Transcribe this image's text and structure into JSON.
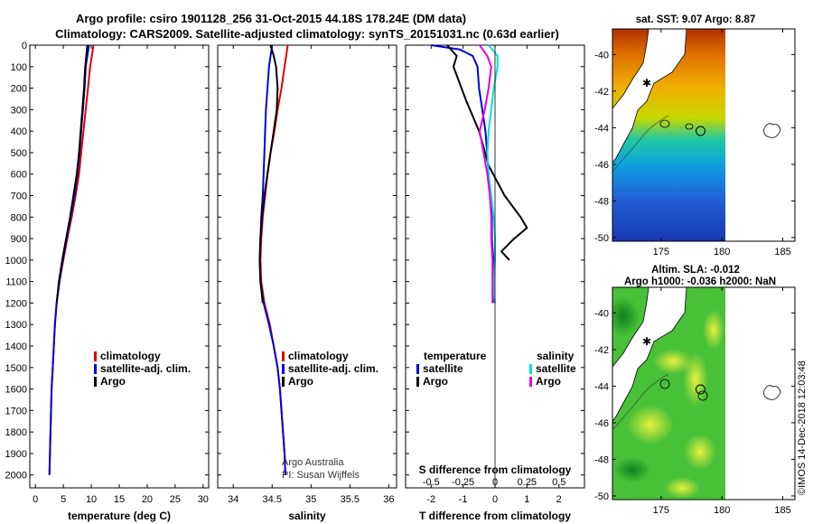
{
  "title": {
    "line1": "Argo profile: csiro 1901128_256 31-Oct-2015 44.18S 178.24E (DM data)",
    "line2": "Climatology: CARS2009. Satellite-adjusted climatology: synTS_20151031.nc (0.63d earlier)"
  },
  "colors": {
    "climatology": "#e00000",
    "satellite": "#0000e0",
    "argo": "#000000",
    "salinity_satellite": "#00e0e0",
    "salinity_argo": "#e000e0",
    "land": "#ffffff"
  },
  "credit": {
    "line1": "Argo Australia",
    "line2": "PI: Susan Wijffels"
  },
  "stamp": "©IMOS 14-Dec-2018 12:03:48",
  "chart_data": [
    {
      "id": "temperature",
      "type": "line",
      "xlabel": "temperature (deg C)",
      "xlim": [
        -1,
        31
      ],
      "xticks": [
        0,
        5,
        10,
        15,
        20,
        25,
        30
      ],
      "ylim": [
        0,
        2060
      ],
      "yticks": [
        0,
        100,
        200,
        300,
        400,
        500,
        600,
        700,
        800,
        900,
        1000,
        1100,
        1200,
        1300,
        1400,
        1500,
        1600,
        1700,
        1800,
        1900,
        2000
      ],
      "legend": [
        "climatology",
        "satellite-adj. clim.",
        "Argo"
      ],
      "series": [
        {
          "name": "climatology",
          "color": "climatology",
          "x": [
            10.4,
            10.1,
            9.8,
            9.4,
            9.0,
            8.6,
            8.2,
            7.8,
            7.2,
            6.5,
            5.7,
            5.0,
            4.3,
            3.8,
            3.5,
            3.3,
            3.1,
            2.9,
            2.8,
            2.7,
            2.6,
            2.5
          ],
          "y": [
            0,
            50,
            100,
            200,
            300,
            400,
            500,
            600,
            700,
            800,
            900,
            1000,
            1100,
            1200,
            1300,
            1400,
            1500,
            1600,
            1700,
            1800,
            1900,
            2000
          ]
        },
        {
          "name": "satellite-adj. clim.",
          "color": "satellite",
          "x": [
            9.6,
            9.3,
            9.0,
            8.8,
            8.5,
            8.2,
            7.9,
            7.5,
            7.0,
            6.3,
            5.6,
            4.9,
            4.3,
            3.8,
            3.5,
            3.3,
            3.1,
            2.9,
            2.8,
            2.7,
            2.6,
            2.5
          ],
          "y": [
            0,
            50,
            100,
            200,
            300,
            400,
            500,
            600,
            700,
            800,
            900,
            1000,
            1100,
            1200,
            1300,
            1400,
            1500,
            1600,
            1700,
            1800,
            1900,
            2000
          ]
        },
        {
          "name": "Argo",
          "color": "argo",
          "x": [
            9.3,
            9.1,
            8.9,
            8.7,
            8.4,
            8.1,
            7.8,
            7.4,
            6.8,
            6.2,
            5.5,
            4.8,
            4.2,
            3.8
          ],
          "y": [
            0,
            50,
            100,
            200,
            300,
            400,
            500,
            600,
            700,
            800,
            900,
            1000,
            1100,
            1200
          ]
        }
      ]
    },
    {
      "id": "salinity",
      "type": "line",
      "xlabel": "salinity",
      "xlim": [
        33.8,
        36.1
      ],
      "xticks": [
        34,
        34.5,
        35,
        35.5,
        36
      ],
      "ylim": [
        0,
        2060
      ],
      "legend": [
        "climatology",
        "satellite-adj. clim.",
        "Argo"
      ],
      "series": [
        {
          "name": "climatology",
          "color": "climatology",
          "x": [
            34.7,
            34.68,
            34.66,
            34.62,
            34.57,
            34.53,
            34.48,
            34.44,
            34.41,
            34.38,
            34.36,
            34.35,
            34.36,
            34.4,
            34.47,
            34.52,
            34.57,
            34.6,
            34.62,
            34.64,
            34.66,
            34.67
          ],
          "y": [
            0,
            50,
            100,
            200,
            300,
            400,
            500,
            600,
            700,
            800,
            900,
            1000,
            1100,
            1200,
            1300,
            1400,
            1500,
            1600,
            1700,
            1800,
            1900,
            2000
          ]
        },
        {
          "name": "satellite-adj. clim.",
          "color": "satellite",
          "x": [
            34.5,
            34.48,
            34.46,
            34.44,
            34.42,
            34.41,
            34.4,
            34.39,
            34.38,
            34.36,
            34.35,
            34.34,
            34.35,
            34.39,
            34.46,
            34.52,
            34.57,
            34.6,
            34.62,
            34.64,
            34.66,
            34.67
          ],
          "y": [
            0,
            50,
            100,
            200,
            300,
            400,
            500,
            600,
            700,
            800,
            900,
            1000,
            1100,
            1200,
            1300,
            1400,
            1500,
            1600,
            1700,
            1800,
            1900,
            2000
          ]
        },
        {
          "name": "Argo",
          "color": "argo",
          "x": [
            34.48,
            34.52,
            34.55,
            34.57,
            34.56,
            34.52,
            34.48,
            34.44,
            34.4,
            34.37,
            34.35,
            34.34,
            34.35,
            34.38
          ],
          "y": [
            0,
            50,
            100,
            200,
            300,
            400,
            500,
            600,
            700,
            800,
            900,
            1000,
            1100,
            1200
          ]
        }
      ]
    },
    {
      "id": "difference",
      "type": "line",
      "xlabel": "T difference from climatology",
      "x2label": "S difference from climatology",
      "xlim": [
        -2.8,
        2.8
      ],
      "xticks": [
        -2,
        -1,
        0,
        1,
        2
      ],
      "x2lim": [
        -0.7,
        0.7
      ],
      "x2ticks": [
        -0.5,
        -0.25,
        0,
        0.25,
        0.5
      ],
      "x2ticklabels": [
        "-0.5",
        "-0.25",
        "0",
        "0.25",
        "0.5"
      ],
      "ylim": [
        0,
        2060
      ],
      "legend_left_title": "temperature",
      "legend_right_title": "salinity",
      "legend_left": [
        "satellite",
        "Argo"
      ],
      "legend_right": [
        "satellite",
        "Argo"
      ],
      "series": [
        {
          "name": "satellite",
          "group": "temperature",
          "color": "satellite",
          "x": [
            -2.0,
            -1.1,
            -0.7,
            -0.55,
            -0.5,
            -0.4,
            -0.3,
            -0.25,
            -0.2,
            -0.15,
            -0.1,
            -0.1,
            -0.05,
            -0.05,
            -0.05
          ],
          "y": [
            0,
            20,
            50,
            100,
            200,
            300,
            400,
            500,
            600,
            700,
            800,
            900,
            1000,
            1100,
            1200
          ]
        },
        {
          "name": "Argo",
          "group": "temperature",
          "color": "argo",
          "x": [
            -1.5,
            -1.2,
            -1.3,
            -1.1,
            -0.9,
            -0.7,
            -0.5,
            -0.35,
            -0.2,
            0.3,
            0.8,
            1.0,
            0.6,
            0.2,
            0.45
          ],
          "y": [
            0,
            50,
            100,
            180,
            260,
            330,
            400,
            480,
            560,
            700,
            800,
            850,
            900,
            960,
            1000
          ]
        },
        {
          "name": "satellite",
          "group": "salinity",
          "color": "salinity_satellite",
          "x": [
            -0.05,
            0.02,
            0.02,
            -0.01,
            -0.03,
            -0.05,
            -0.06,
            -0.05,
            -0.03,
            -0.01,
            0.0,
            0.0,
            -0.01,
            -0.01,
            0.0
          ],
          "y": [
            0,
            50,
            100,
            200,
            300,
            400,
            500,
            600,
            700,
            800,
            900,
            1000,
            1100,
            1150,
            1200
          ]
        },
        {
          "name": "Argo",
          "group": "salinity",
          "color": "salinity_argo",
          "x": [
            -0.12,
            -0.06,
            -0.03,
            -0.05,
            -0.08,
            -0.12,
            -0.09,
            -0.06,
            -0.04,
            -0.03,
            -0.03,
            -0.02,
            -0.02,
            -0.02,
            -0.02
          ],
          "y": [
            0,
            50,
            100,
            200,
            300,
            400,
            500,
            600,
            700,
            800,
            900,
            1000,
            1100,
            1150,
            1200
          ]
        }
      ]
    },
    {
      "id": "sst-map",
      "type": "heatmap",
      "title": "sat. SST: 9.07 Argo: 8.87",
      "xlim": [
        171,
        186
      ],
      "ylim": [
        -50.2,
        -38.6
      ],
      "xticks": [
        175,
        180,
        185
      ],
      "yticks": [
        -40,
        -42,
        -44,
        -46,
        -48,
        -50
      ],
      "yticklabels": [
        "-40",
        "-42",
        "-44",
        "-46",
        "-48",
        "-50"
      ],
      "data_lon": [
        171,
        180
      ],
      "argo_position": [
        178.24,
        -44.18
      ]
    },
    {
      "id": "sla-map",
      "type": "heatmap",
      "title": "Altim. SLA: -0.012",
      "subtitle": "Argo h1000: -0.036 h2000: NaN",
      "xlim": [
        171,
        186
      ],
      "ylim": [
        -50.2,
        -38.6
      ],
      "xticks": [
        175,
        180,
        185
      ],
      "yticks": [
        -40,
        -42,
        -44,
        -46,
        -48,
        -50
      ],
      "yticklabels": [
        "-40",
        "-42",
        "-44",
        "-46",
        "-48",
        "-50"
      ],
      "data_lon": [
        171,
        180
      ],
      "argo_position": [
        178.24,
        -44.18
      ]
    }
  ]
}
